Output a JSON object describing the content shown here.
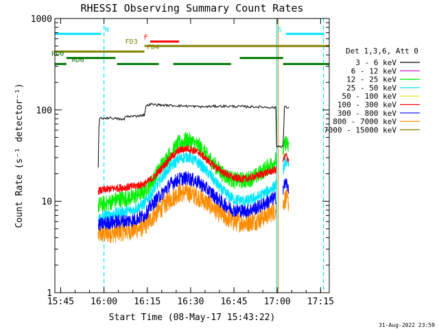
{
  "chart_data": {
    "type": "line",
    "title": "RHESSI Observing Summary Count Rates",
    "xlabel": "Start Time (08-May-17 15:43:22)",
    "ylabel": "Count Rate (s⁻¹ detector⁻¹)",
    "yscale": "log",
    "ylim": [
      1,
      1000
    ],
    "xlim_minutes": [
      -2,
      93
    ],
    "x_ticks": [
      {
        "label": "15:45",
        "min": 0
      },
      {
        "label": "16:00",
        "min": 15
      },
      {
        "label": "16:15",
        "min": 30
      },
      {
        "label": "16:30",
        "min": 45
      },
      {
        "label": "16:45",
        "min": 60
      },
      {
        "label": "17:00",
        "min": 75
      },
      {
        "label": "17:15",
        "min": 90
      }
    ],
    "y_ticks": [
      {
        "label": "1",
        "value": 1
      },
      {
        "label": "10",
        "value": 10
      },
      {
        "label": "100",
        "value": 100
      },
      {
        "label": "1000",
        "value": 1000
      }
    ],
    "legend_title": "Det 1,3,6, Att 0",
    "legend_position": "right",
    "series": [
      {
        "name": "3 - 6 keV",
        "color": "#000000",
        "x": [
          13,
          13.3,
          17,
          22,
          22.4,
          25,
          29,
          29.5,
          31,
          37,
          44,
          49,
          55,
          61,
          68,
          74.5,
          74.6,
          77,
          77.5,
          79,
          79.1
        ],
        "values": [
          24,
          80,
          82,
          78,
          85,
          85,
          88,
          110,
          115,
          112,
          110,
          108,
          110,
          109,
          108,
          106,
          40,
          40,
          108,
          105,
          50
        ]
      },
      {
        "name": "6 - 12 keV",
        "color": "#cc00cc",
        "x": [],
        "values": []
      },
      {
        "name": "12 - 25 keV",
        "color": "#00ee00",
        "x": [
          13,
          16,
          20,
          25,
          29,
          32,
          35,
          38,
          41,
          44,
          48,
          52,
          56,
          60,
          64,
          68,
          72,
          74.5,
          77,
          78,
          79
        ],
        "values": [
          9,
          9.5,
          10.5,
          11,
          13,
          17,
          25,
          33,
          43,
          47,
          40,
          28,
          20,
          17,
          17,
          19,
          24,
          28,
          35,
          45,
          38
        ]
      },
      {
        "name": "25 - 50 keV",
        "color": "#00e5ff",
        "x": [
          13,
          16,
          20,
          25,
          29,
          32,
          35,
          38,
          41,
          44,
          48,
          52,
          56,
          60,
          64,
          68,
          72,
          74.5,
          77,
          78,
          79
        ],
        "values": [
          6.5,
          7,
          7.5,
          8,
          9.5,
          13,
          18,
          24,
          29,
          31,
          26,
          19,
          13,
          10.5,
          10,
          11,
          13,
          15,
          22,
          28,
          24
        ]
      },
      {
        "name": "50 - 100 keV",
        "color": "#e6e600",
        "x": [],
        "values": []
      },
      {
        "name": "100 - 300 keV",
        "color": "#ff0000",
        "x": [
          13,
          16,
          20,
          25,
          29,
          32,
          35,
          38,
          41,
          44,
          48,
          52,
          56,
          60,
          64,
          68,
          72,
          74.5,
          77,
          78,
          79
        ],
        "values": [
          13,
          13.5,
          14,
          14.5,
          15.5,
          18,
          23,
          30,
          36,
          38,
          34,
          26,
          21,
          18,
          17.5,
          19,
          21,
          22,
          28,
          32,
          28
        ]
      },
      {
        "name": "300 - 800 keV",
        "color": "#0000ff",
        "x": [
          13,
          16,
          20,
          25,
          29,
          32,
          35,
          38,
          41,
          44,
          48,
          52,
          56,
          60,
          64,
          68,
          72,
          74.5,
          77,
          78,
          79
        ],
        "values": [
          5.5,
          5.8,
          6,
          6.2,
          7,
          9.5,
          12,
          15.5,
          17.5,
          18,
          16,
          12.5,
          9.5,
          8,
          7.8,
          8.5,
          10,
          11,
          14,
          16,
          14
        ]
      },
      {
        "name": "800 - 7000 keV",
        "color": "#ff8c00",
        "x": [
          13,
          16,
          20,
          25,
          29,
          32,
          35,
          38,
          41,
          44,
          48,
          52,
          56,
          60,
          64,
          68,
          72,
          74.5,
          77,
          78,
          79
        ],
        "values": [
          4.3,
          4.4,
          4.6,
          4.8,
          5.3,
          6.8,
          8.5,
          10.5,
          12.3,
          12.5,
          11,
          9,
          7,
          6,
          5.8,
          6.2,
          7.2,
          8,
          9.5,
          11,
          9.5
        ]
      },
      {
        "name": "7000 - 15000 keV",
        "color": "#808000",
        "x": [],
        "values": []
      }
    ],
    "attenuator_bars": [
      {
        "label": "N",
        "color": "#00e5ff",
        "segments": [
          [
            -2,
            14
          ]
        ],
        "label_at": 16,
        "value": 680
      },
      {
        "label": "S",
        "color": "#00e5ff",
        "segments": [
          [
            78,
            91
          ]
        ],
        "label_at": 76,
        "value": 680
      },
      {
        "label": "F",
        "color": "#ff0000",
        "segments": [
          [
            31,
            41
          ]
        ],
        "label_at": 29.5,
        "value": 560
      },
      {
        "label": "FD3",
        "color": "#808000",
        "segments": [
          [
            29,
            93
          ]
        ],
        "label_at": 24.5,
        "value": 500
      },
      {
        "label": "FD4",
        "color": "#808000",
        "segments": [
          [
            -2,
            29
          ]
        ],
        "label_at": 32,
        "value": 435
      },
      {
        "label": "RD0",
        "color": "#007700",
        "segments": [
          [
            2,
            19
          ],
          [
            62,
            77
          ]
        ],
        "label_at": -1,
        "value": 370
      },
      {
        "label": "RD6",
        "color": "#007700",
        "segments": [
          [
            -2,
            2
          ],
          [
            19.5,
            34
          ],
          [
            39,
            59
          ],
          [
            77,
            93
          ]
        ],
        "label_at": 6,
        "value": 318
      }
    ],
    "vertical_markers": [
      {
        "min": 15,
        "color": "#00e5ff",
        "style": "dashed"
      },
      {
        "min": 74.8,
        "color": "#00e5ff",
        "style": "solid"
      },
      {
        "min": 75.3,
        "color": "#ff8c00",
        "style": "solid"
      },
      {
        "min": 91,
        "color": "#00e5ff",
        "style": "dashed"
      }
    ]
  },
  "footer": {
    "timestamp": "31-Aug-2022 23:59"
  }
}
